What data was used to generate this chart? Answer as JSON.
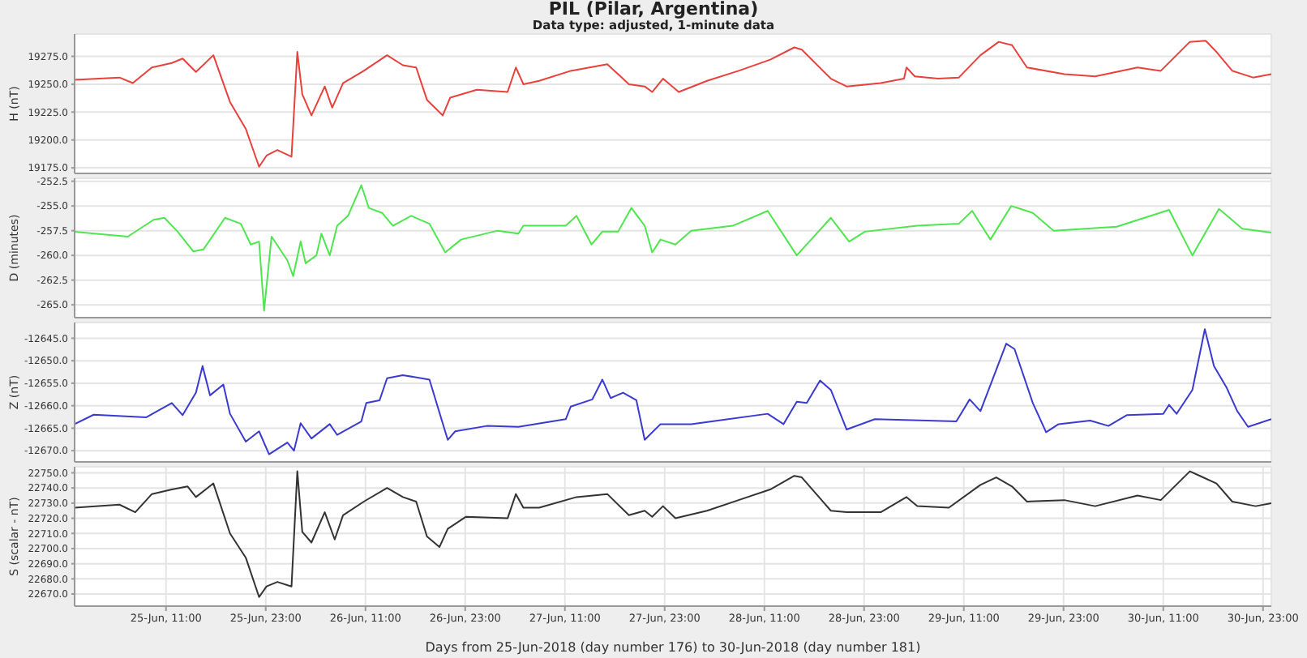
{
  "chart_data": [
    {
      "type": "line",
      "title": "PIL (Pilar, Argentina)",
      "subtitle": "Data type: adjusted, 1-minute data",
      "ylabel": "H (nT)",
      "color": "#e8413c",
      "grid": true,
      "tick_labels": "y",
      "xlim": [
        "2018-06-25T00:00",
        "2018-07-01T00:00"
      ],
      "xticks": [
        {
          "value": "2018-06-25T11:00",
          "label": null
        },
        {
          "value": "2018-06-25T23:00",
          "label": null
        },
        {
          "value": "2018-06-26T11:00",
          "label": null
        },
        {
          "value": "2018-06-26T23:00",
          "label": null
        },
        {
          "value": "2018-06-27T11:00",
          "label": null
        },
        {
          "value": "2018-06-27T23:00",
          "label": null
        },
        {
          "value": "2018-06-28T11:00",
          "label": null
        },
        {
          "value": "2018-06-28T23:00",
          "label": null
        },
        {
          "value": "2018-06-29T11:00",
          "label": null
        },
        {
          "value": "2018-06-29T23:00",
          "label": null
        },
        {
          "value": "2018-06-30T11:00",
          "label": null
        },
        {
          "value": "2018-06-30T23:00",
          "label": null
        }
      ],
      "ylim": [
        19170,
        19295
      ],
      "yticks": [
        {
          "value": 19175,
          "label": "19175.0"
        },
        {
          "value": 19200,
          "label": "19200.0"
        },
        {
          "value": 19225,
          "label": "19225.0"
        },
        {
          "value": 19250,
          "label": "19250.0"
        },
        {
          "value": 19275,
          "label": "19275.0"
        }
      ],
      "x": [
        "2018-06-25T00:00",
        "2018-06-25T05:24",
        "2018-06-25T07:00",
        "2018-06-25T09:18",
        "2018-06-25T11:42",
        "2018-06-25T13:00",
        "2018-06-25T14:36",
        "2018-06-25T16:42",
        "2018-06-25T18:42",
        "2018-06-25T20:36",
        "2018-06-25T22:12",
        "2018-06-25T23:06",
        "2018-06-26T00:24",
        "2018-06-26T02:06",
        "2018-06-26T02:48",
        "2018-06-26T03:24",
        "2018-06-26T04:30",
        "2018-06-26T06:06",
        "2018-06-26T07:00",
        "2018-06-26T08:18",
        "2018-06-26T10:48",
        "2018-06-26T13:36",
        "2018-06-26T15:30",
        "2018-06-26T17:06",
        "2018-06-26T18:24",
        "2018-06-26T20:18",
        "2018-06-26T21:12",
        "2018-06-27T00:24",
        "2018-06-27T04:06",
        "2018-06-27T05:06",
        "2018-06-27T06:00",
        "2018-06-27T07:54",
        "2018-06-27T11:42",
        "2018-06-27T16:06",
        "2018-06-27T18:42",
        "2018-06-27T20:36",
        "2018-06-27T21:30",
        "2018-06-27T22:48",
        "2018-06-28T00:42",
        "2018-06-28T04:06",
        "2018-06-28T07:54",
        "2018-06-28T11:42",
        "2018-06-28T14:36",
        "2018-06-28T15:30",
        "2018-06-28T19:00",
        "2018-06-28T20:54",
        "2018-06-29T01:00",
        "2018-06-29T03:48",
        "2018-06-29T04:06",
        "2018-06-29T05:06",
        "2018-06-29T07:54",
        "2018-06-29T10:24",
        "2018-06-29T13:00",
        "2018-06-29T15:12",
        "2018-06-29T16:48",
        "2018-06-29T18:36",
        "2018-06-29T23:06",
        "2018-06-30T02:48",
        "2018-06-30T07:54",
        "2018-06-30T10:42",
        "2018-06-30T14:12",
        "2018-06-30T16:06",
        "2018-06-30T17:24",
        "2018-06-30T19:18",
        "2018-06-30T21:48",
        "2018-07-01T00:00"
      ],
      "values": [
        19254,
        19256,
        19251,
        19265,
        19269,
        19273,
        19261,
        19276,
        19234,
        19210,
        19176,
        19186,
        19191,
        19185,
        19279,
        19241,
        19222,
        19248,
        19229,
        19251,
        19262,
        19276,
        19267,
        19265,
        19236,
        19222,
        19238,
        19245,
        19243,
        19265,
        19250,
        19253,
        19262,
        19268,
        19250,
        19248,
        19243,
        19255,
        19243,
        19253,
        19262,
        19272,
        19283,
        19281,
        19255,
        19248,
        19251,
        19255,
        19265,
        19257,
        19255,
        19256,
        19276,
        19288,
        19285,
        19265,
        19259,
        19257,
        19265,
        19262,
        19288,
        19289,
        19279,
        19262,
        19256,
        19259
      ]
    },
    {
      "type": "line",
      "ylabel": "D (minutes)",
      "color": "#4ee64e",
      "grid": true,
      "tick_labels": "y",
      "xlim": [
        "2018-06-25T00:00",
        "2018-07-01T00:00"
      ],
      "xticks": [
        {
          "value": "2018-06-25T11:00",
          "label": null
        },
        {
          "value": "2018-06-25T23:00",
          "label": null
        },
        {
          "value": "2018-06-26T11:00",
          "label": null
        },
        {
          "value": "2018-06-26T23:00",
          "label": null
        },
        {
          "value": "2018-06-27T11:00",
          "label": null
        },
        {
          "value": "2018-06-27T23:00",
          "label": null
        },
        {
          "value": "2018-06-28T11:00",
          "label": null
        },
        {
          "value": "2018-06-28T23:00",
          "label": null
        },
        {
          "value": "2018-06-29T11:00",
          "label": null
        },
        {
          "value": "2018-06-29T23:00",
          "label": null
        },
        {
          "value": "2018-06-30T11:00",
          "label": null
        },
        {
          "value": "2018-06-30T23:00",
          "label": null
        }
      ],
      "ylim": [
        -266.3,
        -252.2
      ],
      "yticks": [
        {
          "value": -265,
          "label": "-265.0"
        },
        {
          "value": -262.5,
          "label": "-262.5"
        },
        {
          "value": -260,
          "label": "-260.0"
        },
        {
          "value": -257.5,
          "label": "-257.5"
        },
        {
          "value": -255,
          "label": "-255.0"
        },
        {
          "value": -252.5,
          "label": "-252.5"
        }
      ],
      "x": [
        "2018-06-25T00:00",
        "2018-06-25T06:24",
        "2018-06-25T09:30",
        "2018-06-25T10:48",
        "2018-06-25T12:24",
        "2018-06-25T14:18",
        "2018-06-25T15:30",
        "2018-06-25T18:06",
        "2018-06-25T20:00",
        "2018-06-25T21:12",
        "2018-06-25T22:12",
        "2018-06-25T22:48",
        "2018-06-25T23:42",
        "2018-06-26T01:36",
        "2018-06-26T02:18",
        "2018-06-26T03:12",
        "2018-06-26T03:48",
        "2018-06-26T05:06",
        "2018-06-26T05:42",
        "2018-06-26T06:42",
        "2018-06-26T07:36",
        "2018-06-26T08:54",
        "2018-06-26T10:30",
        "2018-06-26T11:24",
        "2018-06-26T13:00",
        "2018-06-26T14:18",
        "2018-06-26T16:30",
        "2018-06-26T18:42",
        "2018-06-26T20:36",
        "2018-06-26T22:30",
        "2018-06-27T02:54",
        "2018-06-27T05:24",
        "2018-06-27T06:00",
        "2018-06-27T11:06",
        "2018-06-27T12:24",
        "2018-06-27T14:12",
        "2018-06-27T15:30",
        "2018-06-27T17:24",
        "2018-06-27T19:00",
        "2018-06-27T20:36",
        "2018-06-27T21:30",
        "2018-06-27T22:30",
        "2018-06-28T00:18",
        "2018-06-28T02:12",
        "2018-06-28T07:12",
        "2018-06-28T11:24",
        "2018-06-28T14:54",
        "2018-06-28T19:00",
        "2018-06-28T21:12",
        "2018-06-28T23:06",
        "2018-06-29T05:24",
        "2018-06-29T10:24",
        "2018-06-29T12:00",
        "2018-06-29T14:12",
        "2018-06-29T16:42",
        "2018-06-29T19:18",
        "2018-06-29T21:48",
        "2018-06-30T05:24",
        "2018-06-30T11:42",
        "2018-06-30T14:30",
        "2018-06-30T17:42",
        "2018-06-30T20:30",
        "2018-07-01T00:00"
      ],
      "values": [
        -257.6,
        -258.1,
        -256.4,
        -256.2,
        -257.6,
        -259.6,
        -259.4,
        -256.2,
        -256.8,
        -258.9,
        -258.6,
        -265.6,
        -258.1,
        -260.5,
        -262.1,
        -258.6,
        -260.8,
        -260,
        -257.8,
        -260,
        -257,
        -256,
        -252.9,
        -255.2,
        -255.7,
        -257,
        -256,
        -256.8,
        -259.7,
        -258.4,
        -257.5,
        -257.8,
        -257,
        -257,
        -256,
        -258.9,
        -257.6,
        -257.6,
        -255.2,
        -257,
        -259.7,
        -258.4,
        -258.9,
        -257.5,
        -257,
        -255.5,
        -260,
        -256.2,
        -258.6,
        -257.6,
        -257,
        -256.8,
        -255.5,
        -258.4,
        -255,
        -255.7,
        -257.5,
        -257.1,
        -255.4,
        -260,
        -255.3,
        -257.3,
        -257.7
      ]
    },
    {
      "type": "line",
      "ylabel": "Z (nT)",
      "color": "#3a3ad0",
      "grid": true,
      "tick_labels": "y",
      "xlim": [
        "2018-06-25T00:00",
        "2018-07-01T00:00"
      ],
      "xticks": [
        {
          "value": "2018-06-25T11:00",
          "label": null
        },
        {
          "value": "2018-06-25T23:00",
          "label": null
        },
        {
          "value": "2018-06-26T11:00",
          "label": null
        },
        {
          "value": "2018-06-26T23:00",
          "label": null
        },
        {
          "value": "2018-06-27T11:00",
          "label": null
        },
        {
          "value": "2018-06-27T23:00",
          "label": null
        },
        {
          "value": "2018-06-28T11:00",
          "label": null
        },
        {
          "value": "2018-06-28T23:00",
          "label": null
        },
        {
          "value": "2018-06-29T11:00",
          "label": null
        },
        {
          "value": "2018-06-29T23:00",
          "label": null
        },
        {
          "value": "2018-06-30T11:00",
          "label": null
        },
        {
          "value": "2018-06-30T23:00",
          "label": null
        }
      ],
      "ylim": [
        -12672.5,
        -12641.5
      ],
      "yticks": [
        {
          "value": -12670,
          "label": "-12670.0"
        },
        {
          "value": -12665,
          "label": "-12665.0"
        },
        {
          "value": -12660,
          "label": "-12660.0"
        },
        {
          "value": -12655,
          "label": "-12655.0"
        },
        {
          "value": -12650,
          "label": "-12650.0"
        },
        {
          "value": -12645,
          "label": "-12645.0"
        }
      ],
      "x": [
        "2018-06-25T00:00",
        "2018-06-25T02:18",
        "2018-06-25T08:36",
        "2018-06-25T11:42",
        "2018-06-25T13:00",
        "2018-06-25T14:36",
        "2018-06-25T15:24",
        "2018-06-25T16:18",
        "2018-06-25T17:54",
        "2018-06-25T18:42",
        "2018-06-25T20:36",
        "2018-06-25T22:12",
        "2018-06-25T23:24",
        "2018-06-26T01:36",
        "2018-06-26T02:24",
        "2018-06-26T03:12",
        "2018-06-26T04:30",
        "2018-06-26T06:42",
        "2018-06-26T07:36",
        "2018-06-26T10:30",
        "2018-06-26T11:06",
        "2018-06-26T12:42",
        "2018-06-26T13:36",
        "2018-06-26T15:30",
        "2018-06-26T18:42",
        "2018-06-26T20:54",
        "2018-06-26T21:48",
        "2018-06-27T01:36",
        "2018-06-27T05:24",
        "2018-06-27T11:06",
        "2018-06-27T11:42",
        "2018-06-27T14:18",
        "2018-06-27T15:30",
        "2018-06-27T16:30",
        "2018-06-27T18:00",
        "2018-06-27T19:36",
        "2018-06-27T20:36",
        "2018-06-27T22:30",
        "2018-06-28T02:12",
        "2018-06-28T05:24",
        "2018-06-28T11:24",
        "2018-06-28T13:18",
        "2018-06-28T14:54",
        "2018-06-28T16:06",
        "2018-06-28T17:42",
        "2018-06-28T19:00",
        "2018-06-28T20:54",
        "2018-06-29T00:18",
        "2018-06-29T10:06",
        "2018-06-29T11:42",
        "2018-06-29T13:00",
        "2018-06-29T16:06",
        "2018-06-29T17:06",
        "2018-06-29T19:18",
        "2018-06-29T20:54",
        "2018-06-29T22:24",
        "2018-06-30T02:12",
        "2018-06-30T04:24",
        "2018-06-30T06:36",
        "2018-06-30T11:00",
        "2018-06-30T11:42",
        "2018-06-30T12:36",
        "2018-06-30T14:30",
        "2018-06-30T16:00",
        "2018-06-30T17:06",
        "2018-06-30T18:36",
        "2018-06-30T19:54",
        "2018-06-30T21:12",
        "2018-07-01T00:00"
      ],
      "values": [
        -12664.1,
        -12662,
        -12662.6,
        -12659.4,
        -12662.1,
        -12657.1,
        -12651.2,
        -12657.7,
        -12655.3,
        -12661.8,
        -12668,
        -12665.7,
        -12670.8,
        -12668.2,
        -12670,
        -12663.9,
        -12667.3,
        -12664.1,
        -12666.5,
        -12663.5,
        -12659.4,
        -12658.8,
        -12653.9,
        -12653.2,
        -12654.2,
        -12667.6,
        -12665.7,
        -12664.5,
        -12664.7,
        -12663,
        -12660.2,
        -12658.6,
        -12654.2,
        -12658.3,
        -12657.1,
        -12658.8,
        -12667.6,
        -12664.1,
        -12664.1,
        -12663.3,
        -12661.8,
        -12664.1,
        -12659.1,
        -12659.4,
        -12654.4,
        -12656.5,
        -12665.3,
        -12663,
        -12663.5,
        -12658.6,
        -12661.2,
        -12646.2,
        -12647.4,
        -12659.4,
        -12665.9,
        -12664.1,
        -12663.3,
        -12664.5,
        -12662.1,
        -12661.8,
        -12659.8,
        -12661.8,
        -12656.5,
        -12643,
        -12651.2,
        -12655.9,
        -12661.2,
        -12664.7,
        -12663
      ]
    },
    {
      "type": "line",
      "ylabel": "S (scalar - nT)",
      "xlabel": "Days from 25-Jun-2018 (day number 176) to 30-Jun-2018 (day number 181)",
      "color": "#333333",
      "grid": true,
      "xlim": [
        "2018-06-25T00:00",
        "2018-07-01T00:00"
      ],
      "xticks": [
        {
          "value": "2018-06-25T11:00",
          "label": "25-Jun, 11:00"
        },
        {
          "value": "2018-06-25T23:00",
          "label": "25-Jun, 23:00"
        },
        {
          "value": "2018-06-26T11:00",
          "label": "26-Jun, 11:00"
        },
        {
          "value": "2018-06-26T23:00",
          "label": "26-Jun, 23:00"
        },
        {
          "value": "2018-06-27T11:00",
          "label": "27-Jun, 11:00"
        },
        {
          "value": "2018-06-27T23:00",
          "label": "27-Jun, 23:00"
        },
        {
          "value": "2018-06-28T11:00",
          "label": "28-Jun, 11:00"
        },
        {
          "value": "2018-06-28T23:00",
          "label": "28-Jun, 23:00"
        },
        {
          "value": "2018-06-29T11:00",
          "label": "29-Jun, 11:00"
        },
        {
          "value": "2018-06-29T23:00",
          "label": "29-Jun, 23:00"
        },
        {
          "value": "2018-06-30T11:00",
          "label": "30-Jun, 11:00"
        },
        {
          "value": "2018-06-30T23:00",
          "label": "30-Jun, 23:00"
        }
      ],
      "ylim": [
        22662,
        22754
      ],
      "yticks": [
        {
          "value": 22670,
          "label": "22670.0"
        },
        {
          "value": 22680,
          "label": "22680.0"
        },
        {
          "value": 22690,
          "label": "22690.0"
        },
        {
          "value": 22700,
          "label": "22700.0"
        },
        {
          "value": 22710,
          "label": "22710.0"
        },
        {
          "value": 22720,
          "label": "22720.0"
        },
        {
          "value": 22730,
          "label": "22730.0"
        },
        {
          "value": 22740,
          "label": "22740.0"
        },
        {
          "value": 22750,
          "label": "22750.0"
        }
      ],
      "x": [
        "2018-06-25T00:00",
        "2018-06-25T05:24",
        "2018-06-25T07:18",
        "2018-06-25T09:18",
        "2018-06-25T11:42",
        "2018-06-25T13:36",
        "2018-06-25T14:36",
        "2018-06-25T16:42",
        "2018-06-25T18:42",
        "2018-06-25T20:36",
        "2018-06-25T22:12",
        "2018-06-25T23:06",
        "2018-06-26T00:24",
        "2018-06-26T02:06",
        "2018-06-26T02:48",
        "2018-06-26T03:24",
        "2018-06-26T04:30",
        "2018-06-26T06:06",
        "2018-06-26T07:18",
        "2018-06-26T08:18",
        "2018-06-26T10:48",
        "2018-06-26T13:36",
        "2018-06-26T15:30",
        "2018-06-26T17:06",
        "2018-06-26T18:24",
        "2018-06-26T19:54",
        "2018-06-26T20:54",
        "2018-06-26T23:06",
        "2018-06-27T04:06",
        "2018-06-27T05:06",
        "2018-06-27T06:00",
        "2018-06-27T07:54",
        "2018-06-27T12:24",
        "2018-06-27T16:06",
        "2018-06-27T18:42",
        "2018-06-27T20:36",
        "2018-06-27T21:30",
        "2018-06-27T22:48",
        "2018-06-28T00:18",
        "2018-06-28T04:06",
        "2018-06-28T07:54",
        "2018-06-28T11:42",
        "2018-06-28T14:36",
        "2018-06-28T15:30",
        "2018-06-28T19:00",
        "2018-06-28T20:54",
        "2018-06-29T01:00",
        "2018-06-29T04:06",
        "2018-06-29T05:24",
        "2018-06-29T09:12",
        "2018-06-29T13:00",
        "2018-06-29T14:54",
        "2018-06-29T16:48",
        "2018-06-29T18:36",
        "2018-06-29T23:06",
        "2018-06-30T02:48",
        "2018-06-30T07:54",
        "2018-06-30T10:42",
        "2018-06-30T14:12",
        "2018-06-30T15:24",
        "2018-06-30T17:24",
        "2018-06-30T19:18",
        "2018-06-30T22:06",
        "2018-07-01T00:00"
      ],
      "values": [
        22727,
        22729,
        22724,
        22736,
        22739,
        22741,
        22734,
        22743,
        22710,
        22694,
        22668,
        22675,
        22678,
        22675,
        22751,
        22711,
        22704,
        22724,
        22706,
        22722,
        22731,
        22740,
        22734,
        22731,
        22708,
        22701,
        22713,
        22721,
        22720,
        22736,
        22727,
        22727,
        22734,
        22736,
        22722,
        22725,
        22721,
        22728,
        22720,
        22725,
        22732,
        22739,
        22748,
        22747,
        22725,
        22724,
        22724,
        22734,
        22728,
        22727,
        22742,
        22747,
        22741,
        22731,
        22732,
        22728,
        22735,
        22732,
        22751,
        22748,
        22743,
        22731,
        22728,
        22730
      ]
    }
  ]
}
